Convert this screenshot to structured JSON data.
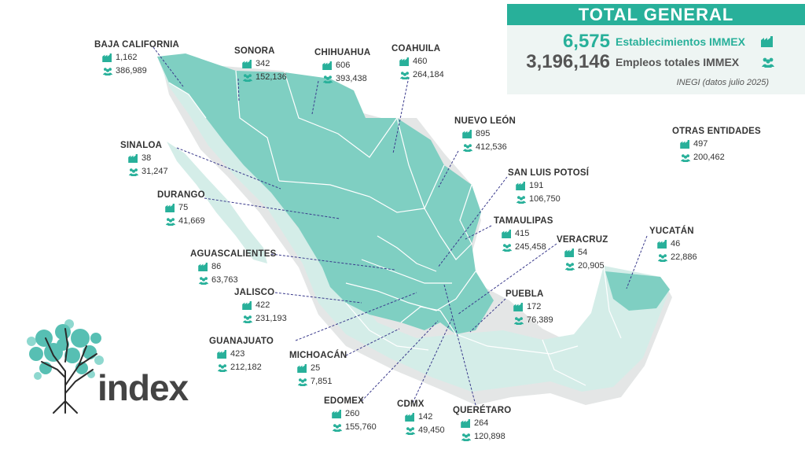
{
  "total": {
    "title": "TOTAL GENERAL",
    "establishments": {
      "value": "6,575",
      "label": "Establecimientos IMMEX",
      "icon": "factory-icon"
    },
    "jobs": {
      "value": "3,196,146",
      "label": "Empleos totales IMMEX",
      "icon": "people-icon"
    },
    "source": "INEGI (datos julio 2025)"
  },
  "colors": {
    "accent": "#28b09a",
    "state_dark": "#7fcfc2",
    "state_light": "#d4ede8",
    "border": "#ffffff",
    "leader": "#3a3a8c"
  },
  "states": [
    {
      "id": "baja-california",
      "name": "BAJA CALIFORNIA",
      "establishments": "1,162",
      "jobs": "386,989"
    },
    {
      "id": "sonora",
      "name": "SONORA",
      "establishments": "342",
      "jobs": "152,136"
    },
    {
      "id": "chihuahua",
      "name": "CHIHUAHUA",
      "establishments": "606",
      "jobs": "393,438"
    },
    {
      "id": "coahuila",
      "name": "COAHUILA",
      "establishments": "460",
      "jobs": "264,184"
    },
    {
      "id": "nuevo-leon",
      "name": "NUEVO LEÓN",
      "establishments": "895",
      "jobs": "412,536"
    },
    {
      "id": "sinaloa",
      "name": "SINALOA",
      "establishments": "38",
      "jobs": "31,247"
    },
    {
      "id": "durango",
      "name": "DURANGO",
      "establishments": "75",
      "jobs": "41,669"
    },
    {
      "id": "san-luis-potosi",
      "name": "SAN LUIS POTOSÍ",
      "establishments": "191",
      "jobs": "106,750"
    },
    {
      "id": "tamaulipas",
      "name": "TAMAULIPAS",
      "establishments": "415",
      "jobs": "245,458"
    },
    {
      "id": "aguascalientes",
      "name": "AGUASCALIENTES",
      "establishments": "86",
      "jobs": "63,763"
    },
    {
      "id": "veracruz",
      "name": "VERACRUZ",
      "establishments": "54",
      "jobs": "20,905"
    },
    {
      "id": "yucatan",
      "name": "YUCATÁN",
      "establishments": "46",
      "jobs": "22,886"
    },
    {
      "id": "jalisco",
      "name": "JALISCO",
      "establishments": "422",
      "jobs": "231,193"
    },
    {
      "id": "puebla",
      "name": "PUEBLA",
      "establishments": "172",
      "jobs": "76,389"
    },
    {
      "id": "guanajuato",
      "name": "GUANAJUATO",
      "establishments": "423",
      "jobs": "212,182"
    },
    {
      "id": "michoacan",
      "name": "MICHOACÁN",
      "establishments": "25",
      "jobs": "7,851"
    },
    {
      "id": "edomex",
      "name": "EDOMEX",
      "establishments": "260",
      "jobs": "155,760"
    },
    {
      "id": "cdmx",
      "name": "CDMX",
      "establishments": "142",
      "jobs": "49,450"
    },
    {
      "id": "queretaro",
      "name": "QUERÉTARO",
      "establishments": "264",
      "jobs": "120,898"
    },
    {
      "id": "otras-entidades",
      "name": "OTRAS ENTIDADES",
      "establishments": "497",
      "jobs": "200,462"
    }
  ],
  "logo": {
    "text": "index"
  }
}
